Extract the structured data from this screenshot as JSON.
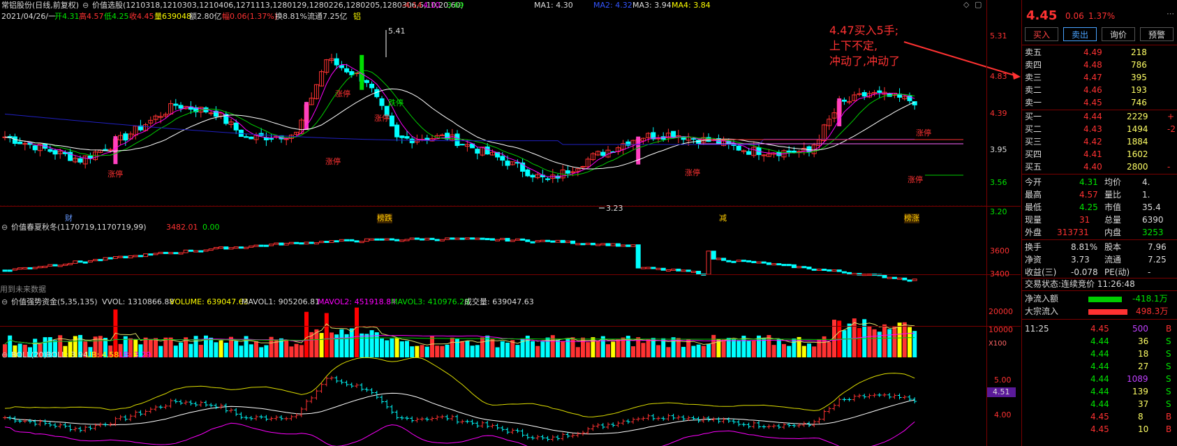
{
  "header": {
    "title": "常铝股份(日线,前复权)",
    "indicator": "价值选股(1210318,1210303,1210406,1271113,1280129,1280226,1280205,1280306,5,10,20,60)",
    "ind_v1": "-4.14",
    "ind_v2": "4.10",
    "ind_v3": "3.69",
    "ma1": "MA1: 4.30",
    "ma2": "MA2: 4.32",
    "ma3": "MA3: 3.94",
    "ma4": "MA4: 3.84",
    "date": "2021/04/26/一",
    "open": "开4.31",
    "high": "高4.57",
    "low": "低4.25",
    "close": "收4.45",
    "volume": "量639048",
    "amount": "额2.80亿",
    "change": "幅0.06(1.37%)",
    "turnover": "换8.81%",
    "float": "流通7.25亿",
    "sector": "铝"
  },
  "main_chart": {
    "y_ticks": [
      "5.31",
      "4.83",
      "4.39",
      "3.95",
      "3.56",
      "3.20"
    ],
    "high_marker": "5.41",
    "low_marker": "3.23",
    "annotation": [
      "4.47买入5手;",
      "上下不定,",
      "冲动了,冲动了"
    ],
    "event_labels": [
      "财",
      "榜跌",
      "减",
      "榜涨"
    ],
    "limit_labels": [
      "涨停",
      "涨停",
      "跌停",
      "涨停",
      "涨停",
      "涨停",
      "涨停",
      "涨停",
      "涨停"
    ],
    "colors": {
      "up": "#ff3232",
      "down": "#00ffff",
      "ma1": "#ffffff",
      "ma2": "#ff00ff",
      "ma3": "#00cc00",
      "ma4": "#2020c0"
    }
  },
  "panel2": {
    "title": "价值春夏秋冬(1170719,1170719,99)",
    "value1": "3482.01",
    "value2": "0.00",
    "y_ticks": [
      "3600",
      "3400"
    ],
    "footer": "用到未来数据"
  },
  "panel3": {
    "title": "价值强势资金(5,35,135)",
    "vvol": "VVOL: 1310866.88",
    "volume": "VOLUME: 639047.63",
    "mavol1": "MAVOL1: 905206.81",
    "mavol2": "MAVOL2: 451918.84",
    "mavol3": "MAVOL3: 410976.28",
    "vol": "成交量: 639047.63",
    "y_ticks": [
      "20000",
      "10000"
    ],
    "unit": "X100"
  },
  "panel4": {
    "title": "BOLL(20)",
    "boll": "BOLL: 3.94",
    "ub": "UB: 4.58",
    "lb": "LB: 3.29",
    "y_ticks": [
      "5.00",
      "4.00"
    ],
    "price_tag": "4.51"
  },
  "sidebar": {
    "price": "4.45",
    "change": "0.06",
    "pct": "1.37%",
    "buttons": [
      "买入",
      "卖出",
      "询价",
      "预警"
    ],
    "asks": [
      {
        "label": "卖五",
        "price": "4.49",
        "vol": "218"
      },
      {
        "label": "卖四",
        "price": "4.48",
        "vol": "786"
      },
      {
        "label": "卖三",
        "price": "4.47",
        "vol": "395"
      },
      {
        "label": "卖二",
        "price": "4.46",
        "vol": "193"
      },
      {
        "label": "卖一",
        "price": "4.45",
        "vol": "746"
      }
    ],
    "bids": [
      {
        "label": "买一",
        "price": "4.44",
        "vol": "2229",
        "extra": "+"
      },
      {
        "label": "买二",
        "price": "4.43",
        "vol": "1494",
        "extra": "-2"
      },
      {
        "label": "买三",
        "price": "4.42",
        "vol": "1884",
        "extra": ""
      },
      {
        "label": "买四",
        "price": "4.41",
        "vol": "1602",
        "extra": ""
      },
      {
        "label": "买五",
        "price": "4.40",
        "vol": "2800",
        "extra": "-"
      }
    ],
    "stats": [
      {
        "l1": "今开",
        "v1": "4.31",
        "l2": "均价",
        "v2": "4."
      },
      {
        "l1": "最高",
        "v1": "4.57",
        "l2": "量比",
        "v2": "1."
      },
      {
        "l1": "最低",
        "v1": "4.25",
        "l2": "市值",
        "v2": "35.4"
      },
      {
        "l1": "现量",
        "v1": "31",
        "l2": "总量",
        "v2": "6390"
      },
      {
        "l1": "外盘",
        "v1": "313731",
        "l2": "内盘",
        "v2": "3253"
      }
    ],
    "stats2": [
      {
        "l1": "换手",
        "v1": "8.81%",
        "l2": "股本",
        "v2": "7.96"
      },
      {
        "l1": "净资",
        "v1": "3.73",
        "l2": "流通",
        "v2": "7.25"
      },
      {
        "l1": "收益(三)",
        "v1": "-0.078",
        "l2": "PE(动)",
        "v2": "-"
      }
    ],
    "status": "交易状态:连续竞价 11:26:48",
    "netflow": {
      "label": "净流入额",
      "value": "-418.1万"
    },
    "bigflow": {
      "label": "大宗流入",
      "value": "498.3万"
    },
    "ticks": [
      {
        "time": "11:25",
        "price": "4.45",
        "vol": "500",
        "side": "B"
      },
      {
        "time": "",
        "price": "4.44",
        "vol": "36",
        "side": "S"
      },
      {
        "time": "",
        "price": "4.44",
        "vol": "18",
        "side": "S"
      },
      {
        "time": "",
        "price": "4.44",
        "vol": "27",
        "side": "S"
      },
      {
        "time": "",
        "price": "4.44",
        "vol": "1089",
        "side": "S"
      },
      {
        "time": "",
        "price": "4.44",
        "vol": "139",
        "side": "S"
      },
      {
        "time": "",
        "price": "4.44",
        "vol": "37",
        "side": "S"
      },
      {
        "time": "",
        "price": "4.45",
        "vol": "8",
        "side": "B"
      },
      {
        "time": "",
        "price": "4.45",
        "vol": "10",
        "side": "B"
      }
    ]
  }
}
